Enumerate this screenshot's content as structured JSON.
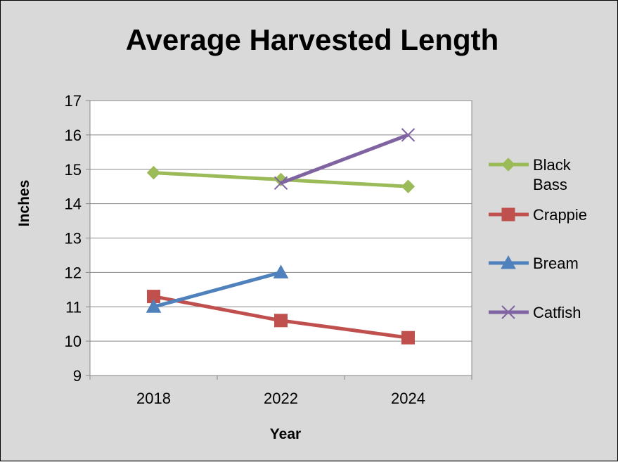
{
  "chart_data": {
    "type": "line",
    "title": "Average Harvested Length",
    "xlabel": "Year",
    "ylabel": "Inches",
    "categories": [
      "2018",
      "2022",
      "2024"
    ],
    "ylim": [
      9,
      17
    ],
    "yticks": [
      9,
      10,
      11,
      12,
      13,
      14,
      15,
      16,
      17
    ],
    "grid": true,
    "legend_position": "right",
    "series": [
      {
        "name": "Black Bass",
        "legend_lines": [
          "Black",
          "Bass"
        ],
        "color": "#9bbb59",
        "marker": "diamond",
        "values": [
          14.9,
          14.7,
          14.5
        ]
      },
      {
        "name": "Crappie",
        "legend_lines": [
          "Crappie"
        ],
        "color": "#c0504d",
        "marker": "square",
        "values": [
          11.3,
          10.6,
          10.1
        ]
      },
      {
        "name": "Bream",
        "legend_lines": [
          "Bream"
        ],
        "color": "#4f81bd",
        "marker": "triangle",
        "values": [
          11.0,
          12.0,
          null
        ]
      },
      {
        "name": "Catfish",
        "legend_lines": [
          "Catfish"
        ],
        "color": "#8064a2",
        "marker": "x",
        "values": [
          null,
          14.6,
          16.0
        ]
      }
    ]
  }
}
